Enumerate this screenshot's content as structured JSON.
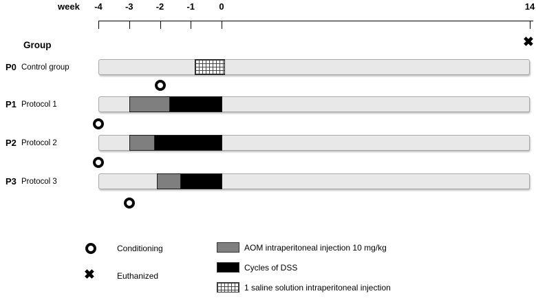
{
  "axis": {
    "label": "week",
    "ticks": [
      {
        "label": "-4",
        "week": -4
      },
      {
        "label": "-3",
        "week": -3
      },
      {
        "label": "-2",
        "week": -2
      },
      {
        "label": "-1",
        "week": -1
      },
      {
        "label": "0",
        "week": 0
      },
      {
        "label": "14",
        "week": 14
      }
    ]
  },
  "group_header": "Group",
  "rows": [
    {
      "id": "P0",
      "label": "Control group",
      "segments": [
        {
          "type": "saline",
          "start": -0.87,
          "end": 0.13
        }
      ]
    },
    {
      "id": "P1",
      "label": "Protocol 1",
      "segments": [
        {
          "type": "aom",
          "start": -3,
          "end": -1.7
        },
        {
          "type": "dss",
          "start": -1.7,
          "end": 0
        }
      ]
    },
    {
      "id": "P2",
      "label": "Protocol 2",
      "segments": [
        {
          "type": "aom",
          "start": -3,
          "end": -2.2
        },
        {
          "type": "dss",
          "start": -2.2,
          "end": 0
        }
      ]
    },
    {
      "id": "P3",
      "label": "Protocol 3",
      "segments": [
        {
          "type": "aom",
          "start": -2.1,
          "end": -1.35
        },
        {
          "type": "dss",
          "start": -1.35,
          "end": 0
        }
      ]
    }
  ],
  "markers": [
    {
      "symbol": "conditioning",
      "row": 1,
      "week": -2,
      "placement": "above"
    },
    {
      "symbol": "conditioning",
      "row": 2,
      "week": -4,
      "placement": "above"
    },
    {
      "symbol": "conditioning",
      "row": 3,
      "week": -4,
      "placement": "above"
    },
    {
      "symbol": "conditioning",
      "row": 3,
      "week": -3,
      "placement": "below"
    }
  ],
  "euthanized": {
    "week": 14
  },
  "symbols": {
    "euthanized": "✖"
  },
  "legend": {
    "left": [
      {
        "symbol": "conditioning",
        "label": "Conditioning"
      },
      {
        "symbol": "euthanized",
        "label": "Euthanized"
      }
    ],
    "right": [
      {
        "symbol": "aom",
        "label": "AOM intraperitoneal injection 10 mg/kg"
      },
      {
        "symbol": "dss",
        "label": "Cycles of DSS"
      },
      {
        "symbol": "saline",
        "label": "1 saline solution intraperitoneal injection"
      }
    ]
  },
  "colors": {
    "bar": "#e8e8e8",
    "aom": "#7f7f7f",
    "dss": "#000000"
  }
}
